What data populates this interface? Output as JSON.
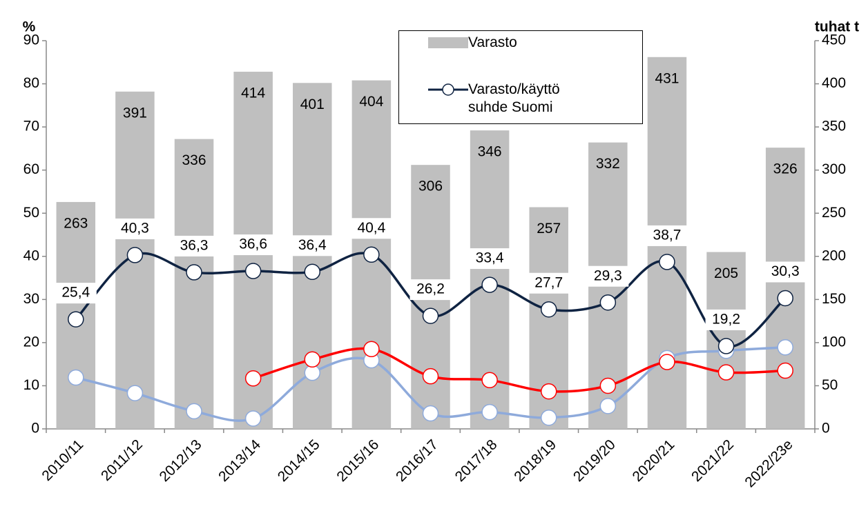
{
  "chart_data": {
    "type": "bar",
    "categories": [
      "2010/11",
      "2011/12",
      "2012/13",
      "2013/14",
      "2014/15",
      "2015/16",
      "2016/17",
      "2017/18",
      "2018/19",
      "2019/20",
      "2020/21",
      "2021/22",
      "2022/23e"
    ],
    "y_label": "%",
    "y2_label": "tuhat t",
    "ylim": [
      0,
      90
    ],
    "yticks": [
      0,
      10,
      20,
      30,
      40,
      50,
      60,
      70,
      80,
      90
    ],
    "y2lim": [
      0,
      450
    ],
    "y2ticks": [
      0,
      50,
      100,
      150,
      200,
      250,
      300,
      350,
      400,
      450
    ],
    "series": [
      {
        "name": "Varasto",
        "type": "bar",
        "axis": "y2",
        "color": "#bfbfbf",
        "values": [
          263,
          391,
          336,
          414,
          401,
          404,
          306,
          346,
          257,
          332,
          431,
          205,
          326
        ]
      },
      {
        "name": "Varasto/käyttö suhde Suomi",
        "type": "line",
        "color": "#0f2342",
        "values": [
          25.4,
          40.3,
          36.3,
          36.6,
          36.4,
          40.4,
          26.2,
          33.4,
          27.7,
          29.3,
          38.7,
          19.2,
          30.3
        ],
        "value_labels": [
          "25,4",
          "40,3",
          "36,3",
          "36,6",
          "36,4",
          "40,4",
          "26,2",
          "33,4",
          "27,7",
          "29,3",
          "38,7",
          "19,2",
          "30,3"
        ]
      },
      {
        "type": "line",
        "color": "#ff0000",
        "values": [
          null,
          null,
          null,
          11.7,
          16.1,
          18.5,
          12.2,
          11.3,
          8.7,
          10.0,
          15.5,
          13.1,
          13.5
        ]
      },
      {
        "type": "line",
        "color": "#8eaadb",
        "values": [
          11.9,
          8.3,
          4.1,
          2.4,
          13.0,
          15.9,
          3.6,
          3.9,
          2.6,
          5.3,
          16.4,
          18.1,
          18.9
        ]
      }
    ]
  }
}
